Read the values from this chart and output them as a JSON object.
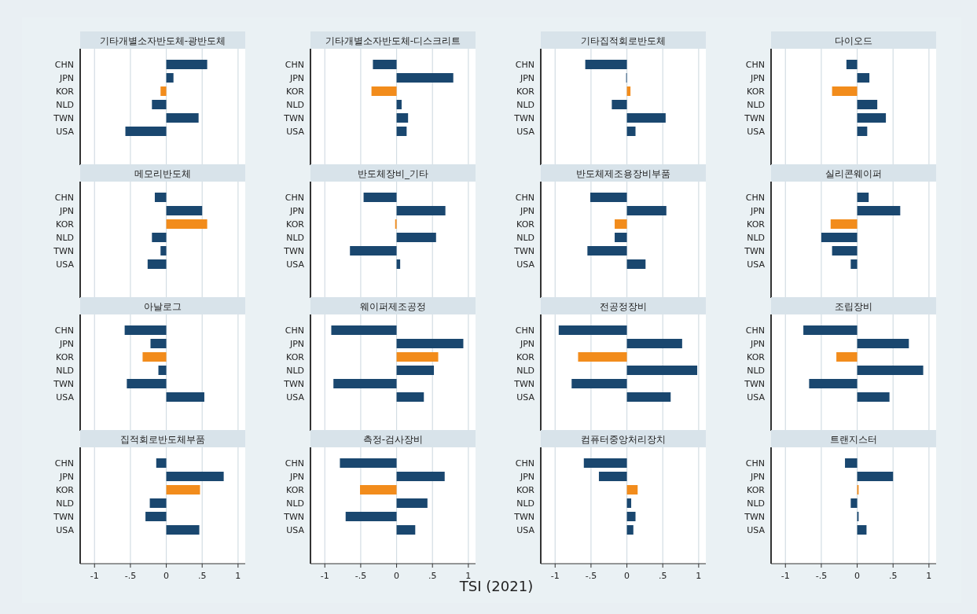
{
  "chart_data": [
    {
      "type": "bar",
      "orientation": "horizontal",
      "title": "기타개별소자반도체-광반도체",
      "categories": [
        "CHN",
        "JPN",
        "KOR",
        "NLD",
        "TWN",
        "USA"
      ],
      "values": [
        0.57,
        0.1,
        -0.08,
        -0.2,
        0.45,
        -0.57
      ],
      "colors": [
        "#1a476f",
        "#1a476f",
        "#f28c1c",
        "#1a476f",
        "#1a476f",
        "#1a476f"
      ],
      "xlim": [
        -1.2,
        1.1
      ],
      "xticks": [
        {
          "value": -1,
          "label": null
        },
        {
          "value": -0.5,
          "label": null
        },
        {
          "value": 0,
          "label": null
        },
        {
          "value": 0.5,
          "label": null
        },
        {
          "value": 1,
          "label": null
        }
      ],
      "grid": "x",
      "tick_labels": "y"
    },
    {
      "type": "bar",
      "orientation": "horizontal",
      "title": "기타개별소자반도체-디스크리트",
      "categories": [
        "CHN",
        "JPN",
        "KOR",
        "NLD",
        "TWN",
        "USA"
      ],
      "values": [
        -0.33,
        0.79,
        -0.35,
        0.07,
        0.16,
        0.14
      ],
      "colors": [
        "#1a476f",
        "#1a476f",
        "#f28c1c",
        "#1a476f",
        "#1a476f",
        "#1a476f"
      ],
      "xlim": [
        -1.2,
        1.1
      ],
      "xticks": [
        {
          "value": -1,
          "label": null
        },
        {
          "value": -0.5,
          "label": null
        },
        {
          "value": 0,
          "label": null
        },
        {
          "value": 0.5,
          "label": null
        },
        {
          "value": 1,
          "label": null
        }
      ],
      "grid": "x",
      "tick_labels": "y"
    },
    {
      "type": "bar",
      "orientation": "horizontal",
      "title": "기타집적회로반도체",
      "categories": [
        "CHN",
        "JPN",
        "KOR",
        "NLD",
        "TWN",
        "USA"
      ],
      "values": [
        -0.58,
        -0.01,
        0.05,
        -0.21,
        0.54,
        0.12
      ],
      "colors": [
        "#1a476f",
        "#1a476f",
        "#f28c1c",
        "#1a476f",
        "#1a476f",
        "#1a476f"
      ],
      "xlim": [
        -1.2,
        1.1
      ],
      "xticks": [
        {
          "value": -1,
          "label": null
        },
        {
          "value": -0.5,
          "label": null
        },
        {
          "value": 0,
          "label": null
        },
        {
          "value": 0.5,
          "label": null
        },
        {
          "value": 1,
          "label": null
        }
      ],
      "grid": "x",
      "tick_labels": "y"
    },
    {
      "type": "bar",
      "orientation": "horizontal",
      "title": "다이오드",
      "categories": [
        "CHN",
        "JPN",
        "KOR",
        "NLD",
        "TWN",
        "USA"
      ],
      "values": [
        -0.15,
        0.17,
        -0.35,
        0.28,
        0.4,
        0.14
      ],
      "colors": [
        "#1a476f",
        "#1a476f",
        "#f28c1c",
        "#1a476f",
        "#1a476f",
        "#1a476f"
      ],
      "xlim": [
        -1.2,
        1.1
      ],
      "xticks": [
        {
          "value": -1,
          "label": null
        },
        {
          "value": -0.5,
          "label": null
        },
        {
          "value": 0,
          "label": null
        },
        {
          "value": 0.5,
          "label": null
        },
        {
          "value": 1,
          "label": null
        }
      ],
      "grid": "x",
      "tick_labels": "y"
    },
    {
      "type": "bar",
      "orientation": "horizontal",
      "title": "메모리반도체",
      "categories": [
        "CHN",
        "JPN",
        "KOR",
        "NLD",
        "TWN",
        "USA"
      ],
      "values": [
        -0.16,
        0.5,
        0.57,
        -0.2,
        -0.08,
        -0.26
      ],
      "colors": [
        "#1a476f",
        "#1a476f",
        "#f28c1c",
        "#1a476f",
        "#1a476f",
        "#1a476f"
      ],
      "xlim": [
        -1.2,
        1.1
      ],
      "xticks": [
        {
          "value": -1,
          "label": null
        },
        {
          "value": -0.5,
          "label": null
        },
        {
          "value": 0,
          "label": null
        },
        {
          "value": 0.5,
          "label": null
        },
        {
          "value": 1,
          "label": null
        }
      ],
      "grid": "x",
      "tick_labels": "y"
    },
    {
      "type": "bar",
      "orientation": "horizontal",
      "title": "반도체장비_기타",
      "categories": [
        "CHN",
        "JPN",
        "KOR",
        "NLD",
        "TWN",
        "USA"
      ],
      "values": [
        -0.46,
        0.68,
        -0.02,
        0.55,
        -0.65,
        0.05
      ],
      "colors": [
        "#1a476f",
        "#1a476f",
        "#f28c1c",
        "#1a476f",
        "#1a476f",
        "#1a476f"
      ],
      "xlim": [
        -1.2,
        1.1
      ],
      "xticks": [
        {
          "value": -1,
          "label": null
        },
        {
          "value": -0.5,
          "label": null
        },
        {
          "value": 0,
          "label": null
        },
        {
          "value": 0.5,
          "label": null
        },
        {
          "value": 1,
          "label": null
        }
      ],
      "grid": "x",
      "tick_labels": "y"
    },
    {
      "type": "bar",
      "orientation": "horizontal",
      "title": "반도체제조용장비부품",
      "categories": [
        "CHN",
        "JPN",
        "KOR",
        "NLD",
        "TWN",
        "USA"
      ],
      "values": [
        -0.51,
        0.55,
        -0.17,
        -0.17,
        -0.55,
        0.26
      ],
      "colors": [
        "#1a476f",
        "#1a476f",
        "#f28c1c",
        "#1a476f",
        "#1a476f",
        "#1a476f"
      ],
      "xlim": [
        -1.2,
        1.1
      ],
      "xticks": [
        {
          "value": -1,
          "label": null
        },
        {
          "value": -0.5,
          "label": null
        },
        {
          "value": 0,
          "label": null
        },
        {
          "value": 0.5,
          "label": null
        },
        {
          "value": 1,
          "label": null
        }
      ],
      "grid": "x",
      "tick_labels": "y"
    },
    {
      "type": "bar",
      "orientation": "horizontal",
      "title": "실리콘웨이퍼",
      "categories": [
        "CHN",
        "JPN",
        "KOR",
        "NLD",
        "TWN",
        "USA"
      ],
      "values": [
        0.16,
        0.6,
        -0.37,
        -0.5,
        -0.35,
        -0.09
      ],
      "colors": [
        "#1a476f",
        "#1a476f",
        "#f28c1c",
        "#1a476f",
        "#1a476f",
        "#1a476f"
      ],
      "xlim": [
        -1.2,
        1.1
      ],
      "xticks": [
        {
          "value": -1,
          "label": null
        },
        {
          "value": -0.5,
          "label": null
        },
        {
          "value": 0,
          "label": null
        },
        {
          "value": 0.5,
          "label": null
        },
        {
          "value": 1,
          "label": null
        }
      ],
      "grid": "x",
      "tick_labels": "y"
    },
    {
      "type": "bar",
      "orientation": "horizontal",
      "title": "아날로그",
      "categories": [
        "CHN",
        "JPN",
        "KOR",
        "NLD",
        "TWN",
        "USA"
      ],
      "values": [
        -0.58,
        -0.22,
        -0.33,
        -0.11,
        -0.55,
        0.53
      ],
      "colors": [
        "#1a476f",
        "#1a476f",
        "#f28c1c",
        "#1a476f",
        "#1a476f",
        "#1a476f"
      ],
      "xlim": [
        -1.2,
        1.1
      ],
      "xticks": [
        {
          "value": -1,
          "label": null
        },
        {
          "value": -0.5,
          "label": null
        },
        {
          "value": 0,
          "label": null
        },
        {
          "value": 0.5,
          "label": null
        },
        {
          "value": 1,
          "label": null
        }
      ],
      "grid": "x",
      "tick_labels": "y"
    },
    {
      "type": "bar",
      "orientation": "horizontal",
      "title": "웨이퍼제조공정",
      "categories": [
        "CHN",
        "JPN",
        "KOR",
        "NLD",
        "TWN",
        "USA"
      ],
      "values": [
        -0.91,
        0.93,
        0.58,
        0.52,
        -0.88,
        0.38
      ],
      "colors": [
        "#1a476f",
        "#1a476f",
        "#f28c1c",
        "#1a476f",
        "#1a476f",
        "#1a476f"
      ],
      "xlim": [
        -1.2,
        1.1
      ],
      "xticks": [
        {
          "value": -1,
          "label": null
        },
        {
          "value": -0.5,
          "label": null
        },
        {
          "value": 0,
          "label": null
        },
        {
          "value": 0.5,
          "label": null
        },
        {
          "value": 1,
          "label": null
        }
      ],
      "grid": "x",
      "tick_labels": "y"
    },
    {
      "type": "bar",
      "orientation": "horizontal",
      "title": "전공정장비",
      "categories": [
        "CHN",
        "JPN",
        "KOR",
        "NLD",
        "TWN",
        "USA"
      ],
      "values": [
        -0.95,
        0.77,
        -0.68,
        0.98,
        -0.77,
        0.61
      ],
      "colors": [
        "#1a476f",
        "#1a476f",
        "#f28c1c",
        "#1a476f",
        "#1a476f",
        "#1a476f"
      ],
      "xlim": [
        -1.2,
        1.1
      ],
      "xticks": [
        {
          "value": -1,
          "label": null
        },
        {
          "value": -0.5,
          "label": null
        },
        {
          "value": 0,
          "label": null
        },
        {
          "value": 0.5,
          "label": null
        },
        {
          "value": 1,
          "label": null
        }
      ],
      "grid": "x",
      "tick_labels": "y"
    },
    {
      "type": "bar",
      "orientation": "horizontal",
      "title": "조립장비",
      "categories": [
        "CHN",
        "JPN",
        "KOR",
        "NLD",
        "TWN",
        "USA"
      ],
      "values": [
        -0.75,
        0.72,
        -0.29,
        0.92,
        -0.67,
        0.45
      ],
      "colors": [
        "#1a476f",
        "#1a476f",
        "#f28c1c",
        "#1a476f",
        "#1a476f",
        "#1a476f"
      ],
      "xlim": [
        -1.2,
        1.1
      ],
      "xticks": [
        {
          "value": -1,
          "label": null
        },
        {
          "value": -0.5,
          "label": null
        },
        {
          "value": 0,
          "label": null
        },
        {
          "value": 0.5,
          "label": null
        },
        {
          "value": 1,
          "label": null
        }
      ],
      "grid": "x",
      "tick_labels": "y"
    },
    {
      "type": "bar",
      "orientation": "horizontal",
      "title": "집적회로반도체부품",
      "categories": [
        "CHN",
        "JPN",
        "KOR",
        "NLD",
        "TWN",
        "USA"
      ],
      "values": [
        -0.14,
        0.8,
        0.47,
        -0.23,
        -0.29,
        0.46
      ],
      "colors": [
        "#1a476f",
        "#1a476f",
        "#f28c1c",
        "#1a476f",
        "#1a476f",
        "#1a476f"
      ],
      "xlim": [
        -1.2,
        1.1
      ],
      "xticks": [
        {
          "value": -1,
          "label": "-1"
        },
        {
          "value": -0.5,
          "label": "-.5"
        },
        {
          "value": 0,
          "label": "0"
        },
        {
          "value": 0.5,
          "label": ".5"
        },
        {
          "value": 1,
          "label": "1"
        }
      ],
      "grid": "x"
    },
    {
      "type": "bar",
      "orientation": "horizontal",
      "title": "측정-검사장비",
      "categories": [
        "CHN",
        "JPN",
        "KOR",
        "NLD",
        "TWN",
        "USA"
      ],
      "values": [
        -0.79,
        0.67,
        -0.51,
        0.43,
        -0.71,
        0.26
      ],
      "colors": [
        "#1a476f",
        "#1a476f",
        "#f28c1c",
        "#1a476f",
        "#1a476f",
        "#1a476f"
      ],
      "xlim": [
        -1.2,
        1.1
      ],
      "xticks": [
        {
          "value": -1,
          "label": "-1"
        },
        {
          "value": -0.5,
          "label": "-.5"
        },
        {
          "value": 0,
          "label": "0"
        },
        {
          "value": 0.5,
          "label": ".5"
        },
        {
          "value": 1,
          "label": "1"
        }
      ],
      "grid": "x"
    },
    {
      "type": "bar",
      "orientation": "horizontal",
      "title": "컴퓨터중앙처리장치",
      "categories": [
        "CHN",
        "JPN",
        "KOR",
        "NLD",
        "TWN",
        "USA"
      ],
      "values": [
        -0.6,
        -0.39,
        0.15,
        0.06,
        0.12,
        0.09
      ],
      "colors": [
        "#1a476f",
        "#1a476f",
        "#f28c1c",
        "#1a476f",
        "#1a476f",
        "#1a476f"
      ],
      "xlim": [
        -1.2,
        1.1
      ],
      "xticks": [
        {
          "value": -1,
          "label": "-1"
        },
        {
          "value": -0.5,
          "label": "-.5"
        },
        {
          "value": 0,
          "label": "0"
        },
        {
          "value": 0.5,
          "label": ".5"
        },
        {
          "value": 1,
          "label": "1"
        }
      ],
      "grid": "x"
    },
    {
      "type": "bar",
      "orientation": "horizontal",
      "title": "트랜지스터",
      "categories": [
        "CHN",
        "JPN",
        "KOR",
        "NLD",
        "TWN",
        "USA"
      ],
      "values": [
        -0.17,
        0.5,
        0.02,
        -0.09,
        0.02,
        0.13
      ],
      "colors": [
        "#1a476f",
        "#1a476f",
        "#f28c1c",
        "#1a476f",
        "#1a476f",
        "#1a476f"
      ],
      "xlim": [
        -1.2,
        1.1
      ],
      "xticks": [
        {
          "value": -1,
          "label": "-1"
        },
        {
          "value": -0.5,
          "label": "-.5"
        },
        {
          "value": 0,
          "label": "0"
        },
        {
          "value": 0.5,
          "label": ".5"
        },
        {
          "value": 1,
          "label": "1"
        }
      ],
      "grid": "x"
    },
    {
      "type": "other",
      "annotations": [
        "TSI (2021)"
      ]
    }
  ]
}
